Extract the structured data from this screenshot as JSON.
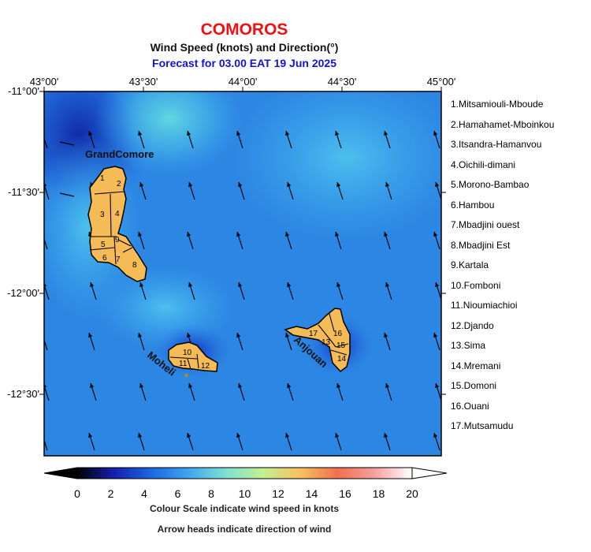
{
  "map": {
    "title": "COMOROS",
    "subtitle": "Wind Speed (knots) and Direction(°)",
    "forecast": "Forecast for  03.00 EAT 19 Jun 2025",
    "lon_labels": [
      "43°00'",
      "43°30'",
      "44°00'",
      "44°30'",
      "45°00'"
    ],
    "lat_labels": [
      "-11°00'",
      "-11°30'",
      "-12°00'",
      "-12°30'"
    ],
    "island_labels": {
      "grand_comore": "GrandComore",
      "moheli": "Moheli",
      "anjouan": "Anjouan"
    },
    "region_numbers": [
      "1",
      "2",
      "3",
      "4",
      "5",
      "6",
      "7",
      "8",
      "9",
      "10",
      "11",
      "12",
      "13",
      "14",
      "15",
      "16",
      "17"
    ],
    "regions": [
      "1.Mitsamiouli-Mboude",
      "2.Hamahamet-Mboinkou",
      "3.Itsandra-Hamanvou",
      "4.Oichili-dimani",
      "5.Morono-Bambao",
      "6.Hambou",
      "7.Mbadjini ouest",
      "8.Mbadjini Est",
      "9.Kartala",
      "10.Fomboni",
      "11.Nioumiachioi",
      "12.Djando",
      "13.Sima",
      "14.Mremani",
      "15.Domoni",
      "16.Ouani",
      "17.Mutsamudu"
    ],
    "colorbar": {
      "ticks": [
        "0",
        "2",
        "4",
        "6",
        "8",
        "10",
        "12",
        "14",
        "16",
        "18",
        "20"
      ],
      "stops": [
        "#000000",
        "#1520b0",
        "#1d66e0",
        "#3fa6ef",
        "#7fe0d0",
        "#c4f090",
        "#f6c060",
        "#f07050",
        "#f6a0a0",
        "#ffffff"
      ]
    },
    "caption1": "Colour Scale indicate wind speed in knots",
    "caption2": "Arrow heads indicate direction of wind"
  }
}
